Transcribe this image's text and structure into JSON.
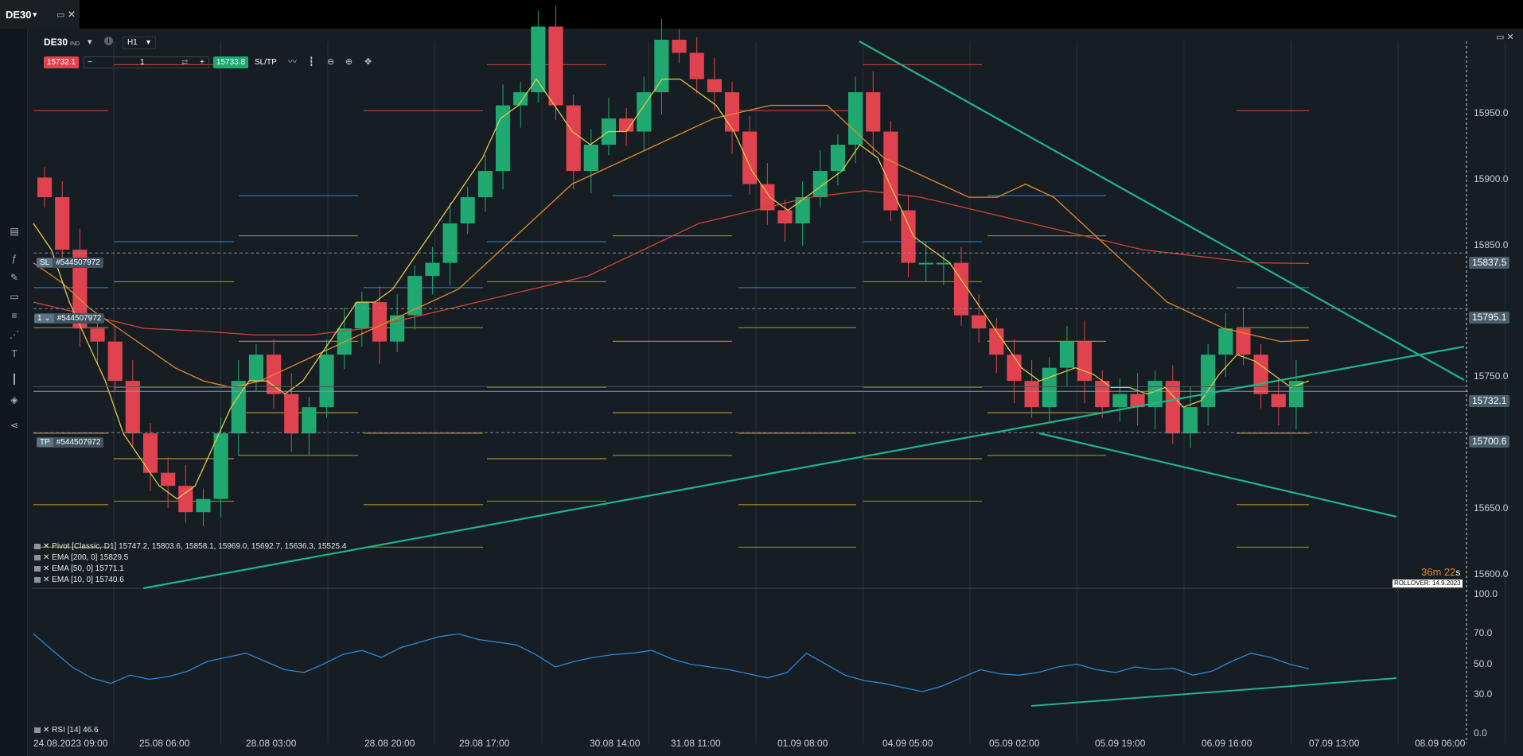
{
  "tab": {
    "symbol": "DE30",
    "caret": "▾",
    "window_icon": "▭",
    "close_icon": "✕"
  },
  "header": {
    "symbol": "DE30",
    "market": "IND",
    "timeframe": "H1",
    "caret": "▾",
    "info": "i"
  },
  "trade": {
    "sell_price": "15732.1",
    "buy_price": "15733.8",
    "qty": "1",
    "minus": "−",
    "plus": "+",
    "sltp": "SL/TP"
  },
  "tags": {
    "sl": {
      "pre": "SL",
      "id": "#544507972"
    },
    "pos": {
      "pre": "1 ⌄",
      "id": "#544507972"
    },
    "tp": {
      "pre": "TP",
      "id": "#544507972"
    }
  },
  "price_tags": [
    "15837.5",
    "15795.1",
    "15732.1",
    "15700.6"
  ],
  "y_axis": [
    "15950.0",
    "15900.0",
    "15850.0",
    "15750.0",
    "15650.0",
    "15600.0"
  ],
  "rsi_axis": [
    "100.0",
    "70.0",
    "50.0",
    "30.0",
    "0.0"
  ],
  "x_axis": [
    "24.08.2023 09:00",
    "25.08 06:00",
    "28.08 03:00",
    "28.08 20:00",
    "29.08 17:00",
    "30.08 14:00",
    "31.08 11:00",
    "01.09 08:00",
    "04.09 05:00",
    "05.09 02:00",
    "05.09 19:00",
    "06.09 16:00",
    "07.09 13:00",
    "08.09 06:00"
  ],
  "legend": [
    "Pivot [Classic, D1] 15747.2, 15803.6, 15858.1, 15969.0, 15692.7, 15636.3, 15525.4",
    "EMA [200, 0] 15829.5",
    "EMA [50, 0] 15771.1",
    "EMA [10, 0] 15740.6"
  ],
  "rsi_label": "RSI [14] 46.6",
  "timer": {
    "main": "36m 22",
    "sub": "s"
  },
  "rollover": "ROLLOVER: 14.9.2023",
  "colors": {
    "up": "#1fa971",
    "down": "#e0434f",
    "ema10": "#e6c84a",
    "ema50": "#e08a2b",
    "ema200": "#d0443c",
    "rsi": "#2f86d6",
    "trend": "#1fb58a"
  },
  "chart_data": {
    "type": "candlestick",
    "timeframe": "H1",
    "ylim": [
      15585,
      16000
    ],
    "candles_close": [
      15880,
      15840,
      15780,
      15770,
      15740,
      15700,
      15670,
      15660,
      15640,
      15650,
      15700,
      15740,
      15760,
      15730,
      15700,
      15720,
      15760,
      15780,
      15800,
      15770,
      15790,
      15820,
      15830,
      15860,
      15880,
      15900,
      15950,
      15960,
      16010,
      15950,
      15900,
      15920,
      15940,
      15930,
      15960,
      16000,
      15990,
      15970,
      15960,
      15930,
      15890,
      15870,
      15860,
      15880,
      15900,
      15920,
      15960,
      15930,
      15870,
      15830,
      15830,
      15830,
      15790,
      15780,
      15760,
      15740,
      15720,
      15750,
      15770,
      15740,
      15720,
      15730,
      15720,
      15740,
      15700,
      15720,
      15760,
      15780,
      15760,
      15730,
      15720,
      15740
    ],
    "ema10": [
      15860,
      15840,
      15800,
      15770,
      15740,
      15700,
      15680,
      15660,
      15650,
      15660,
      15690,
      15720,
      15740,
      15740,
      15730,
      15740,
      15760,
      15780,
      15800,
      15800,
      15810,
      15830,
      15850,
      15870,
      15890,
      15910,
      15940,
      15950,
      15970,
      15950,
      15930,
      15920,
      15930,
      15930,
      15950,
      15970,
      15970,
      15960,
      15950,
      15930,
      15900,
      15880,
      15870,
      15880,
      15890,
      15900,
      15920,
      15910,
      15880,
      15850,
      15840,
      15830,
      15810,
      15790,
      15770,
      15750,
      15740,
      15745,
      15750,
      15745,
      15735,
      15735,
      15730,
      15735,
      15720,
      15725,
      15745,
      15760,
      15755,
      15745,
      15735,
      15740
    ],
    "ema50": [
      15830,
      15815,
      15795,
      15780,
      15765,
      15750,
      15740,
      15735,
      15740,
      15750,
      15760,
      15770,
      15780,
      15790,
      15800,
      15810,
      15830,
      15850,
      15870,
      15890,
      15900,
      15910,
      15920,
      15930,
      15940,
      15945,
      15950,
      15950,
      15950,
      15930,
      15910,
      15900,
      15890,
      15880,
      15880,
      15890,
      15880,
      15860,
      15840,
      15820,
      15800,
      15790,
      15780,
      15775,
      15770,
      15771
    ],
    "ema200": [
      15800,
      15790,
      15780,
      15778,
      15775,
      15775,
      15780,
      15790,
      15800,
      15810,
      15820,
      15840,
      15860,
      15870,
      15880,
      15885,
      15880,
      15870,
      15860,
      15850,
      15840,
      15835,
      15830,
      15829.5
    ],
    "pivot_d1": [
      15747.2,
      15803.6,
      15858.1,
      15969.0,
      15692.7,
      15636.3,
      15525.4
    ],
    "current_price": {
      "sell": 15732.1,
      "buy": 15733.8
    },
    "stop_loss": 15837.5,
    "take_profit": 15700.6,
    "position_open": 15795.1,
    "rsi": {
      "period": 14,
      "value": 46.6,
      "ylim": [
        0,
        100
      ],
      "levels": [
        70,
        50,
        30
      ],
      "values": [
        72,
        60,
        48,
        40,
        36,
        42,
        39,
        41,
        45,
        52,
        55,
        58,
        52,
        46,
        44,
        50,
        57,
        60,
        55,
        62,
        66,
        70,
        72,
        68,
        66,
        64,
        57,
        48,
        52,
        55,
        57,
        58,
        60,
        54,
        50,
        48,
        46,
        43,
        40,
        44,
        58,
        50,
        42,
        38,
        36,
        33,
        30,
        34,
        40,
        46,
        43,
        42,
        44,
        48,
        50,
        46,
        44,
        48,
        46,
        47,
        42,
        45,
        52,
        58,
        55,
        50,
        46.6
      ]
    },
    "trendlines": 4
  }
}
